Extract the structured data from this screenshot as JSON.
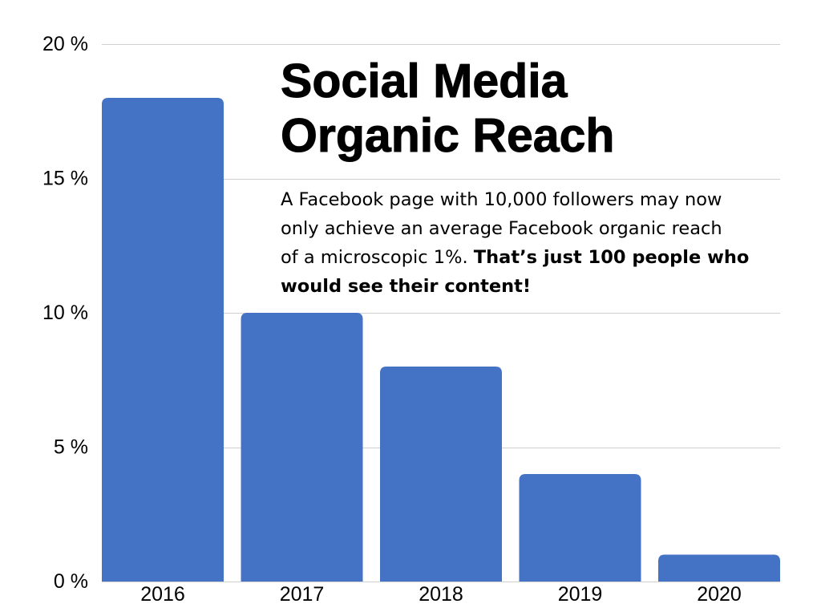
{
  "chart_data": {
    "type": "bar",
    "title": "Social Media Organic Reach",
    "annotation": {
      "lines": [
        "A Facebook page with 10,000 followers may now",
        "only achieve an average Facebook organic reach",
        "of a microscopic 1%."
      ],
      "emphasis_lines": [
        "That’s just 100 people who",
        "would see their content!"
      ]
    },
    "categories": [
      "2016",
      "2017",
      "2018",
      "2019",
      "2020"
    ],
    "values": [
      18,
      10,
      8,
      4,
      1
    ],
    "ylim": [
      0,
      20
    ],
    "yticks": [
      0,
      5,
      10,
      15,
      20
    ],
    "ytick_labels": [
      "0 %",
      "5 %",
      "10 %",
      "15 %",
      "20 %"
    ],
    "grid": true,
    "colors": {
      "bar": "#4472C4",
      "grid": "#CFCFCF",
      "text": "#000000"
    }
  }
}
